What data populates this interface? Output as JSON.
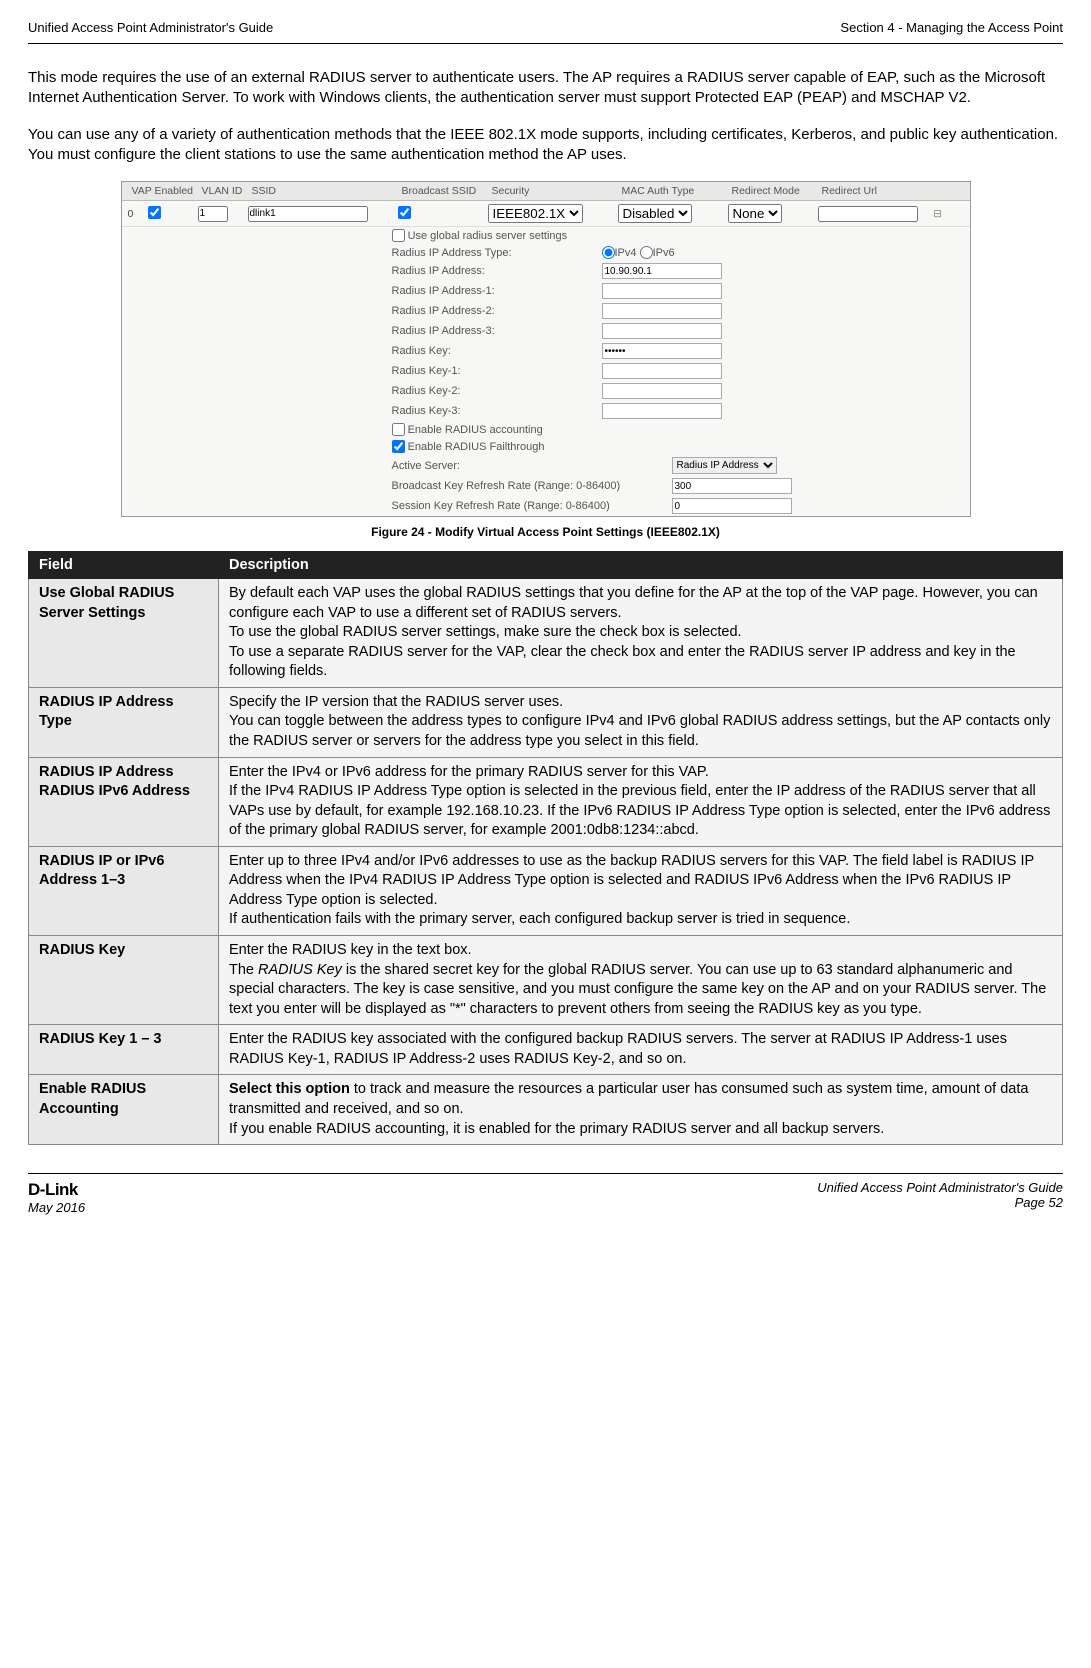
{
  "header": {
    "left": "Unified Access Point Administrator's Guide",
    "right": "Section 4 - Managing the Access Point"
  },
  "intro": {
    "p1": "This mode requires the use of an external RADIUS server to authenticate users. The AP requires a RADIUS server capable of EAP, such as the Microsoft Internet Authentication Server. To work with Windows clients, the authentication server must support Protected EAP (PEAP) and MSCHAP V2.",
    "p2": "You can use any of a variety of authentication methods that the IEEE 802.1X mode supports, including certificates, Kerberos, and public key authentication. You must configure the client stations to use the same authentication method the AP uses."
  },
  "screenshot": {
    "cols": {
      "vap": "VAP Enabled",
      "vlan": "VLAN ID",
      "ssid": "SSID",
      "bcast": "Broadcast SSID",
      "security": "Security",
      "mac": "MAC Auth Type",
      "redirm": "Redirect Mode",
      "rediru": "Redirect Url"
    },
    "row0": {
      "vap": "0",
      "vlan": "1",
      "ssid": "dlink1",
      "security": "IEEE802.1X",
      "mac": "Disabled",
      "redirm": "None"
    },
    "fields": {
      "useglobal": "Use global radius server settings",
      "iptype": "Radius IP Address Type:",
      "ipv4": "IPv4",
      "ipv6": "IPv6",
      "ip": "Radius IP Address:",
      "ip_val": "10.90.90.1",
      "ip1": "Radius IP Address-1:",
      "ip2": "Radius IP Address-2:",
      "ip3": "Radius IP Address-3:",
      "key": "Radius Key:",
      "key_val": "••••••",
      "key1": "Radius Key-1:",
      "key2": "Radius Key-2:",
      "key3": "Radius Key-3:",
      "acct": "Enable RADIUS accounting",
      "fail": "Enable RADIUS Failthrough",
      "active": "Active Server:",
      "active_val": "Radius IP Address",
      "bcast": "Broadcast Key Refresh Rate (Range: 0-86400)",
      "bcast_val": "300",
      "sess": "Session Key Refresh Rate (Range: 0-86400)",
      "sess_val": "0"
    }
  },
  "caption": "Figure 24 - Modify Virtual Access Point Settings (IEEE802.1X)",
  "table": {
    "head_field": "Field",
    "head_desc": "Description",
    "rows": [
      {
        "field": "Use Global RADIUS Server Settings",
        "desc": "By default each VAP uses the global RADIUS settings that you define for the AP at the top of the VAP page. However, you can configure each VAP to use a different set of RADIUS servers.\nTo use the global RADIUS server settings, make sure the check box is selected.\nTo use a separate RADIUS server for the VAP, clear the check box and enter the RADIUS server IP address and key in the following fields."
      },
      {
        "field": "RADIUS IP Address Type",
        "desc": "Specify the IP version that the RADIUS server uses.\nYou can toggle between the address types to configure IPv4 and IPv6 global RADIUS address settings, but the AP contacts only the RADIUS server or servers for the address type you select in this field."
      },
      {
        "field": "RADIUS IP Address RADIUS IPv6 Address",
        "desc": "Enter the IPv4 or IPv6 address for the primary RADIUS server for this VAP.\nIf the IPv4 RADIUS IP Address Type option is selected in the previous field, enter the IP address of the RADIUS server that all VAPs use by default, for example 192.168.10.23. If the IPv6 RADIUS IP Address Type option is selected, enter the IPv6 address of the primary global RADIUS server, for example 2001:0db8:1234::abcd."
      },
      {
        "field": "RADIUS IP or IPv6 Address 1–3",
        "desc": "Enter up to three IPv4 and/or IPv6 addresses to use as the backup RADIUS servers for this VAP. The field label is RADIUS IP Address when the IPv4 RADIUS IP Address Type option is selected and RADIUS IPv6 Address when the IPv6 RADIUS IP Address Type option is selected.\nIf authentication fails with the primary server, each configured backup server is tried in sequence."
      },
      {
        "field": "RADIUS Key",
        "desc_html": "Enter the RADIUS key in the text box.\nThe <span class=\"ital\">RADIUS Key</span> is the shared secret key for the global RADIUS server. You can use up to 63 standard alphanumeric and special characters. The key is case sensitive, and you must configure the same key on the AP and on your RADIUS server. The text you enter will be displayed as \"*\" characters to prevent others from seeing the RADIUS key as you type."
      },
      {
        "field": "RADIUS Key 1 – 3",
        "desc": "Enter the RADIUS key associated with the configured backup RADIUS servers. The server at RADIUS IP Address-1 uses RADIUS Key-1, RADIUS IP Address-2 uses RADIUS Key-2, and so on."
      },
      {
        "field": "Enable RADIUS Accounting",
        "desc_html": "<strong>Select this option</strong> to track and measure the resources a particular user has consumed such as system time, amount of data transmitted and received, and so on.\nIf you enable RADIUS accounting, it is enabled for the primary RADIUS server and all backup servers."
      }
    ]
  },
  "footer": {
    "brand": "D-Link",
    "date": "May 2016",
    "guide": "Unified Access Point Administrator's Guide",
    "page": "Page 52"
  }
}
